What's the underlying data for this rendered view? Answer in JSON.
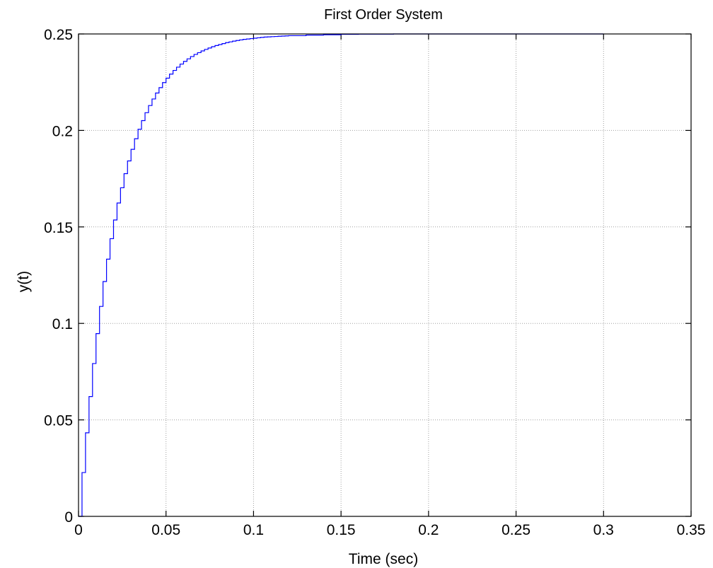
{
  "chart_data": {
    "type": "line",
    "title": "First Order System",
    "xlabel": "Time (sec)",
    "ylabel": "y(t)",
    "xlim": [
      0,
      0.35
    ],
    "ylim": [
      0,
      0.25
    ],
    "x_ticks": [
      0,
      0.05,
      0.1,
      0.15,
      0.2,
      0.25,
      0.3,
      0.35
    ],
    "x_tick_labels": [
      "0",
      "0.05",
      "0.1",
      "0.15",
      "0.2",
      "0.25",
      "0.3",
      "0.35"
    ],
    "y_ticks": [
      0,
      0.05,
      0.1,
      0.15,
      0.2,
      0.25
    ],
    "y_tick_labels": [
      "0",
      "0.05",
      "0.1",
      "0.15",
      "0.2",
      "0.25"
    ],
    "grid": true,
    "colors": {
      "line": "#0000ff",
      "grid": "#a0a0a0",
      "axes": "#000000",
      "background": "#ffffff"
    },
    "series": [
      {
        "style": "stairs",
        "x": [
          0,
          0.002,
          0.004,
          0.006,
          0.008,
          0.01,
          0.012,
          0.014,
          0.016,
          0.018,
          0.02,
          0.022,
          0.024,
          0.026,
          0.028,
          0.03,
          0.032,
          0.034,
          0.036,
          0.038,
          0.04,
          0.042,
          0.044,
          0.046,
          0.048,
          0.05,
          0.052,
          0.054,
          0.056,
          0.058,
          0.06,
          0.062,
          0.064,
          0.066,
          0.068,
          0.07,
          0.072,
          0.074,
          0.076,
          0.078,
          0.08,
          0.082,
          0.084,
          0.086,
          0.088,
          0.09,
          0.092,
          0.094,
          0.096,
          0.098,
          0.1,
          0.102,
          0.104,
          0.106,
          0.108,
          0.11,
          0.112,
          0.114,
          0.116,
          0.118,
          0.12,
          0.13,
          0.14,
          0.15,
          0.16,
          0.17,
          0.18,
          0.19,
          0.2,
          0.21,
          0.22,
          0.23,
          0.24,
          0.25,
          0.26,
          0.27,
          0.28,
          0.29,
          0.3
        ],
        "y": [
          0.0,
          0.0227,
          0.0433,
          0.0621,
          0.0792,
          0.0947,
          0.1088,
          0.1217,
          0.1333,
          0.1439,
          0.1536,
          0.1624,
          0.1703,
          0.1776,
          0.1842,
          0.1902,
          0.1957,
          0.2006,
          0.2051,
          0.2092,
          0.2129,
          0.2163,
          0.2194,
          0.2222,
          0.2248,
          0.2271,
          0.2292,
          0.2311,
          0.2328,
          0.2344,
          0.2358,
          0.2371,
          0.2383,
          0.2394,
          0.2403,
          0.2412,
          0.242,
          0.2427,
          0.2434,
          0.244,
          0.2445,
          0.245,
          0.2455,
          0.2459,
          0.2463,
          0.2466,
          0.2469,
          0.2472,
          0.2474,
          0.2476,
          0.2478,
          0.248,
          0.2482,
          0.2484,
          0.2485,
          0.2486,
          0.2487,
          0.2488,
          0.2489,
          0.249,
          0.2491,
          0.2494,
          0.2496,
          0.2498,
          0.2499,
          0.2499,
          0.25,
          0.25,
          0.25,
          0.25,
          0.25,
          0.25,
          0.25,
          0.25,
          0.25,
          0.25,
          0.25,
          0.25,
          0.25
        ]
      }
    ]
  }
}
